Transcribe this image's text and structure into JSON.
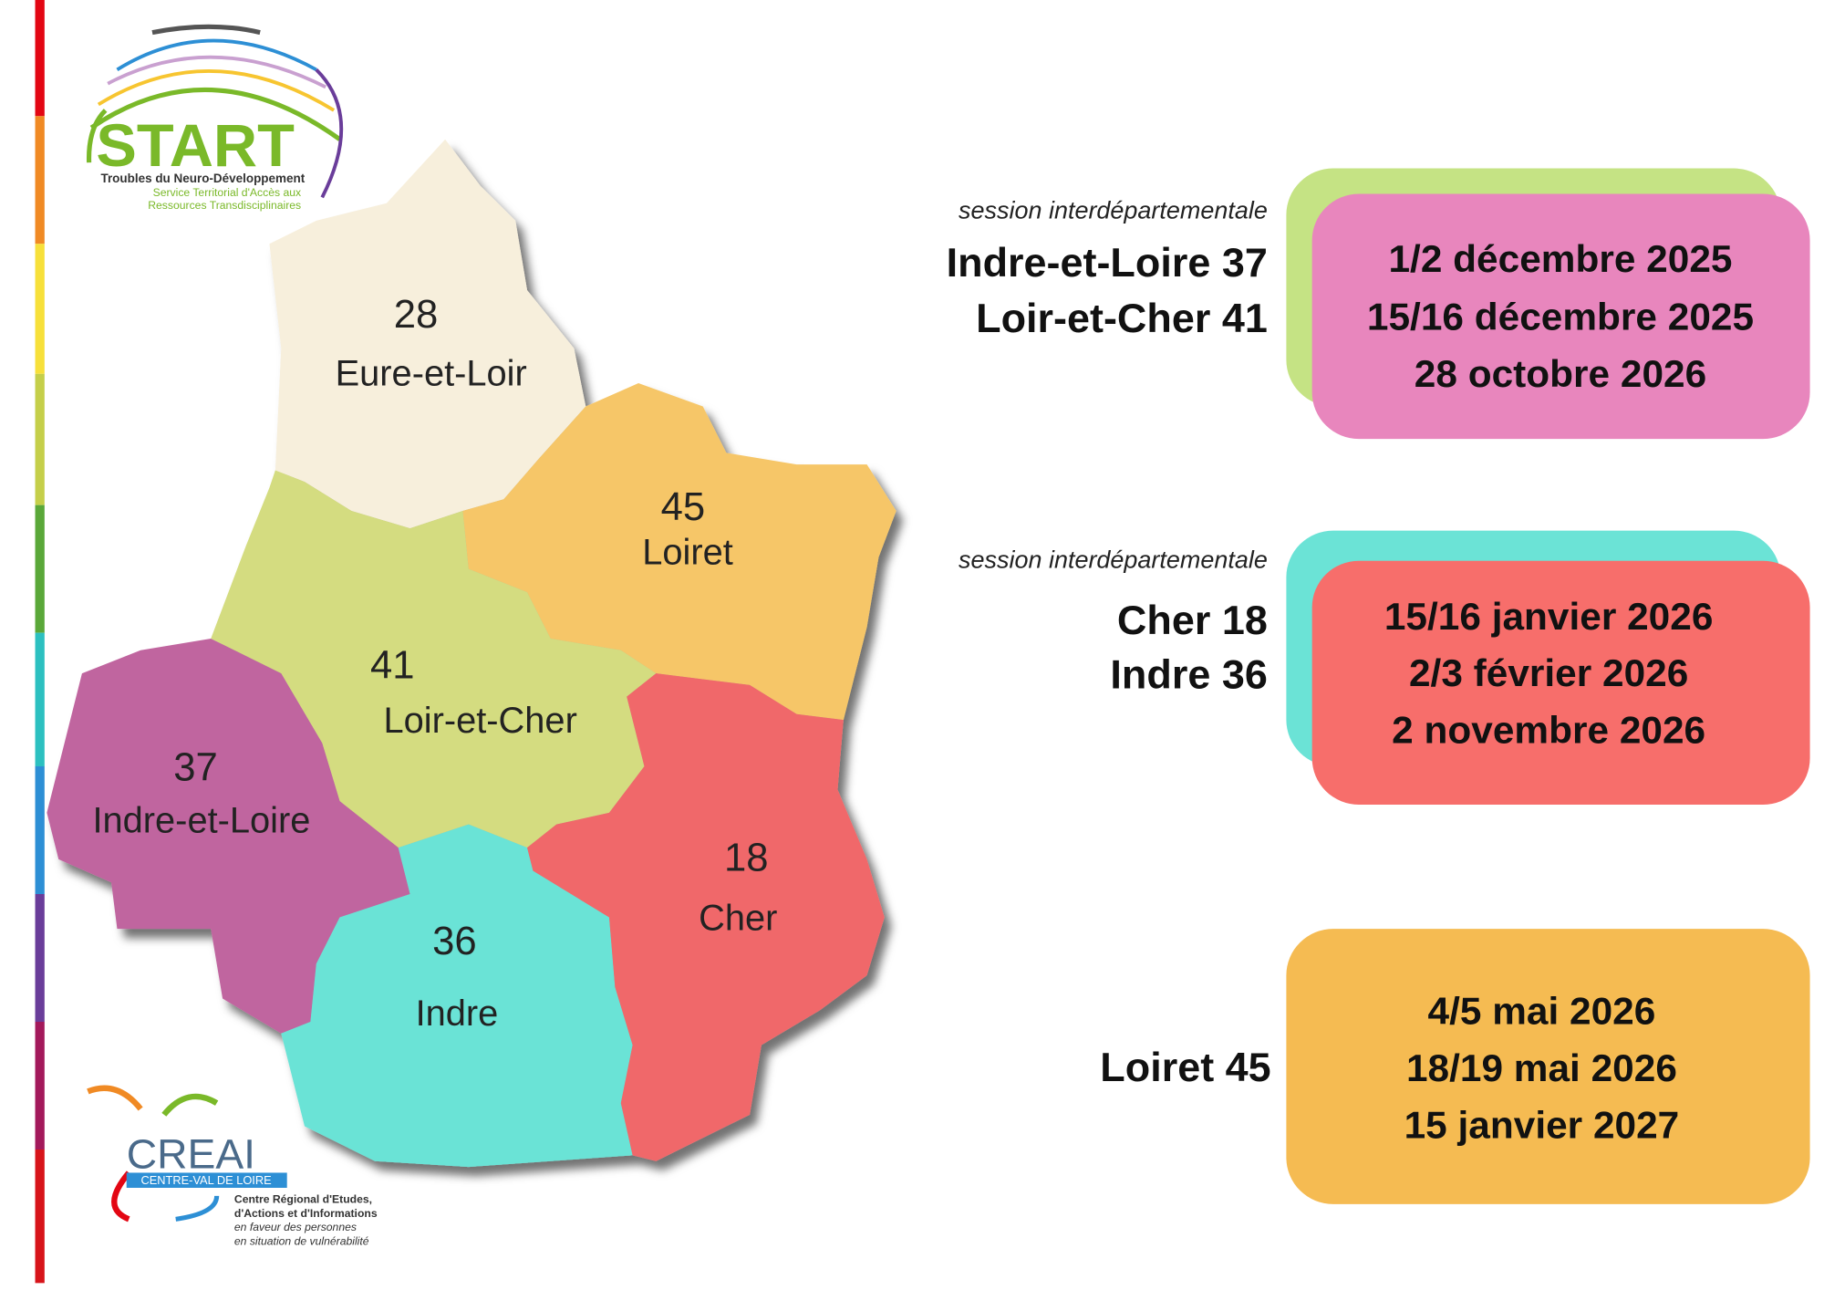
{
  "logos": {
    "start": {
      "name": "START",
      "subtitle": "Troubles du Neuro-Développement",
      "lines": [
        "Service Territorial d'Accès aux",
        "Ressources Transdisciplinaires"
      ]
    },
    "creai": {
      "name": "CREAI",
      "region": "CENTRE-VAL DE LOIRE",
      "lines": [
        "Centre Régional d'Etudes,",
        "d'Actions et d'Informations",
        "en faveur des personnes",
        "en situation de vulnérabilité"
      ]
    }
  },
  "map": {
    "departments": [
      {
        "number": 28,
        "name": "Eure-et-Loir"
      },
      {
        "number": 45,
        "name": "Loiret"
      },
      {
        "number": 41,
        "name": "Loir-et-Cher"
      },
      {
        "number": 37,
        "name": "Indre-et-Loire"
      },
      {
        "number": 18,
        "name": "Cher"
      },
      {
        "number": 36,
        "name": "Indre"
      }
    ]
  },
  "sessions": [
    {
      "note": "session interdépartementale",
      "departments": [
        "Indre-et-Loire 37",
        "Loir-et-Cher 41"
      ],
      "dates": [
        "1/2 décembre 2025",
        "15/16 décembre 2025",
        "28 octobre 2026"
      ]
    },
    {
      "note": "session interdépartementale",
      "departments": [
        "Cher 18",
        "Indre 36"
      ],
      "dates": [
        "15/16 janvier 2026",
        "2/3 février 2026",
        "2 novembre 2026"
      ]
    },
    {
      "departments": [
        "Loiret 45"
      ],
      "dates": [
        "4/5 mai 2026",
        "18/19 mai 2026",
        "15 janvier 2027"
      ]
    }
  ]
}
